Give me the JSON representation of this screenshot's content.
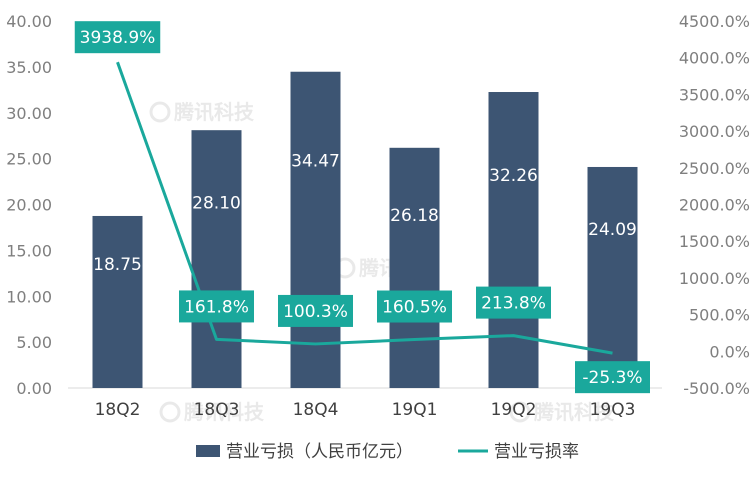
{
  "chart_data": {
    "type": "bar",
    "categories": [
      "18Q2",
      "18Q3",
      "18Q4",
      "19Q1",
      "19Q2",
      "19Q3"
    ],
    "series": [
      {
        "name": "营业亏损（人民币亿元）",
        "type": "bar",
        "axis": "left",
        "values": [
          18.75,
          28.1,
          34.47,
          26.18,
          32.26,
          24.09
        ],
        "labels": [
          "18.75",
          "28.10",
          "34.47",
          "26.18",
          "32.26",
          "24.09"
        ]
      },
      {
        "name": "营业亏损率",
        "type": "line",
        "axis": "right",
        "values": [
          3938.9,
          161.8,
          100.3,
          160.5,
          213.8,
          -25.3
        ],
        "labels": [
          "3938.9%",
          "161.8%",
          "100.3%",
          "160.5%",
          "213.8%",
          "-25.3%"
        ]
      }
    ],
    "y_left": {
      "min": 0,
      "max": 40,
      "ticks": [
        "0.00",
        "5.00",
        "10.00",
        "15.00",
        "20.00",
        "25.00",
        "30.00",
        "35.00",
        "40.00"
      ]
    },
    "y_right": {
      "min": -500,
      "max": 4500,
      "ticks": [
        "-500.0%",
        "0.0%",
        "500.0%",
        "1000.0%",
        "1500.0%",
        "2000.0%",
        "2500.0%",
        "3000.0%",
        "3500.0%",
        "4000.0%",
        "4500.0%"
      ]
    },
    "legend_position": "bottom",
    "grid": false,
    "colors": {
      "bar": "#3d5573",
      "line": "#1aa89c",
      "label_box": "#1aa89c"
    },
    "watermark": "腾讯科技"
  }
}
